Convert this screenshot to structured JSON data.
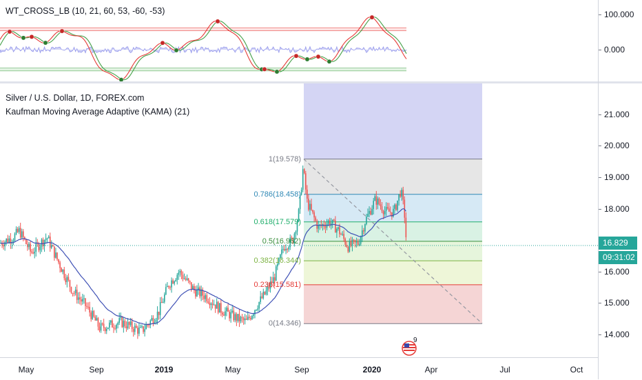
{
  "oscillator": {
    "legend": "WT_CROSS_LB (10, 21, 60, 53, -60, -53)",
    "scale_ticks": [
      "100.000",
      "0.000"
    ],
    "colors": {
      "upper_band": "#e53935",
      "lower_band": "#43a047",
      "fast": "#e53935",
      "slow": "#43a047",
      "histogram": "#7b7fe8"
    }
  },
  "main": {
    "symbol_line": "Silver / U.S. Dollar, 1D, FOREX.com",
    "indicator_line": "Kaufman Moving Average Adaptive (KAMA) (21)",
    "scale_ticks": [
      "21.000",
      "20.000",
      "19.000",
      "18.000",
      "17.000",
      "16.000",
      "15.000",
      "14.000"
    ],
    "current_price": "16.829",
    "countdown": "09:31:02",
    "colors": {
      "up": "#26a69a",
      "down": "#ef5350",
      "kama": "#3f51b5",
      "price_line": "#26a69a",
      "countdown_bg": "#26a69a"
    }
  },
  "fibonacci": {
    "levels": [
      {
        "label": "1(19.578)",
        "price": 19.578,
        "color": "#787b86",
        "fill": "#e6e6e6"
      },
      {
        "label": "0.786(18.458)",
        "price": 18.458,
        "color": "#2f88b5",
        "fill": "#d6e9f5"
      },
      {
        "label": "0.618(17.579)",
        "price": 17.579,
        "color": "#1fae6b",
        "fill": "#d9f2e4"
      },
      {
        "label": "0.5(16.962)",
        "price": 16.962,
        "color": "#388e3c",
        "fill": "#e6f5dc"
      },
      {
        "label": "0.382(16.344)",
        "price": 16.344,
        "color": "#7cb342",
        "fill": "#eef6d8"
      },
      {
        "label": "0.236(15.581)",
        "price": 15.581,
        "color": "#e53935",
        "fill": "#f5d5d5"
      },
      {
        "label": "0(14.346)",
        "price": 14.346,
        "color": "#787b86",
        "fill": "#ffffff"
      }
    ],
    "extension_fill": "#cfd0f3"
  },
  "time_axis": {
    "labels": [
      {
        "text": "May",
        "year": false
      },
      {
        "text": "Sep",
        "year": false
      },
      {
        "text": "2019",
        "year": true
      },
      {
        "text": "May",
        "year": false
      },
      {
        "text": "Sep",
        "year": false
      },
      {
        "text": "2020",
        "year": true
      },
      {
        "text": "Apr",
        "year": false
      },
      {
        "text": "Jul",
        "year": false
      },
      {
        "text": "Oct",
        "year": false
      }
    ]
  },
  "event_marker": {
    "icon": "us-flag-icon",
    "count": "9"
  }
}
